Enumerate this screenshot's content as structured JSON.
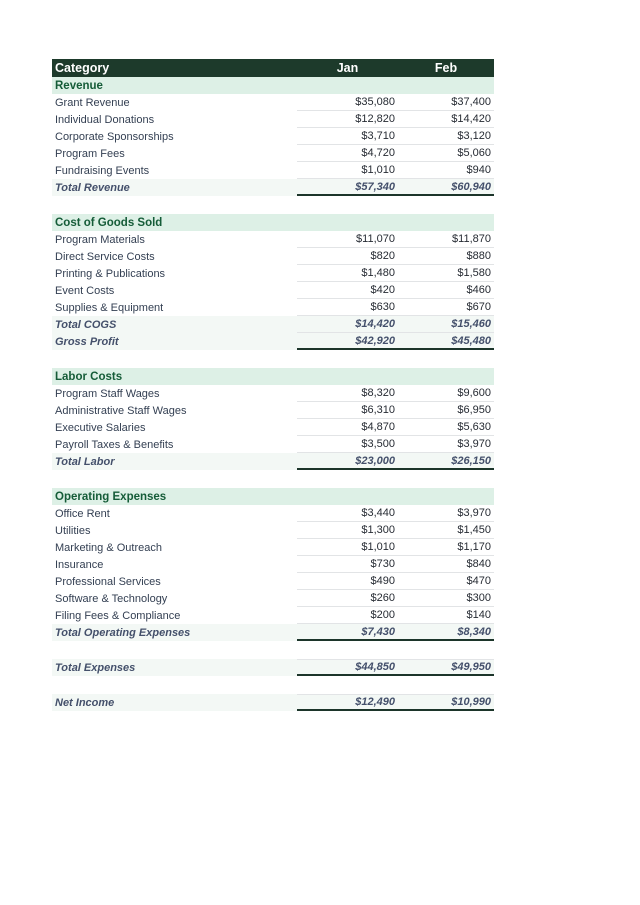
{
  "page": {
    "background": "#ffffff"
  },
  "table": {
    "colors": {
      "header_bg": "#1d3a2b",
      "header_text": "#ffffff",
      "section_bg": "#ddf0e6",
      "section_text": "#155c38",
      "label_text": "#333f52",
      "value_text": "#262b33",
      "total_text": "#44506b",
      "total_bg": "#f3f8f5",
      "row_line": "#e2e4e6",
      "total_border": "#1c352a"
    },
    "columns": [
      "Category",
      "Jan",
      "Feb"
    ],
    "sections": [
      {
        "title": "Revenue",
        "rows": [
          {
            "label": "Grant Revenue",
            "jan": "$35,080",
            "feb": "$37,400"
          },
          {
            "label": "Individual Donations",
            "jan": "$12,820",
            "feb": "$14,420"
          },
          {
            "label": "Corporate Sponsorships",
            "jan": "$3,710",
            "feb": "$3,120"
          },
          {
            "label": "Program Fees",
            "jan": "$4,720",
            "feb": "$5,060"
          },
          {
            "label": "Fundraising Events",
            "jan": "$1,010",
            "feb": "$940"
          }
        ],
        "totals": [
          {
            "label": "Total Revenue",
            "jan": "$57,340",
            "feb": "$60,940"
          }
        ]
      },
      {
        "title": "Cost of Goods Sold",
        "rows": [
          {
            "label": "Program Materials",
            "jan": "$11,070",
            "feb": "$11,870"
          },
          {
            "label": "Direct Service Costs",
            "jan": "$820",
            "feb": "$880"
          },
          {
            "label": "Printing & Publications",
            "jan": "$1,480",
            "feb": "$1,580"
          },
          {
            "label": "Event Costs",
            "jan": "$420",
            "feb": "$460"
          },
          {
            "label": "Supplies & Equipment",
            "jan": "$630",
            "feb": "$670"
          }
        ],
        "totals": [
          {
            "label": "Total COGS",
            "jan": "$14,420",
            "feb": "$15,460"
          },
          {
            "label": "Gross Profit",
            "jan": "$42,920",
            "feb": "$45,480"
          }
        ]
      },
      {
        "title": "Labor Costs",
        "rows": [
          {
            "label": "Program Staff Wages",
            "jan": "$8,320",
            "feb": "$9,600"
          },
          {
            "label": "Administrative Staff Wages",
            "jan": "$6,310",
            "feb": "$6,950"
          },
          {
            "label": "Executive Salaries",
            "jan": "$4,870",
            "feb": "$5,630"
          },
          {
            "label": "Payroll Taxes & Benefits",
            "jan": "$3,500",
            "feb": "$3,970"
          }
        ],
        "totals": [
          {
            "label": "Total Labor",
            "jan": "$23,000",
            "feb": "$26,150"
          }
        ]
      },
      {
        "title": "Operating Expenses",
        "rows": [
          {
            "label": "Office Rent",
            "jan": "$3,440",
            "feb": "$3,970"
          },
          {
            "label": "Utilities",
            "jan": "$1,300",
            "feb": "$1,450"
          },
          {
            "label": "Marketing & Outreach",
            "jan": "$1,010",
            "feb": "$1,170"
          },
          {
            "label": "Insurance",
            "jan": "$730",
            "feb": "$840"
          },
          {
            "label": "Professional Services",
            "jan": "$490",
            "feb": "$470"
          },
          {
            "label": "Software & Technology",
            "jan": "$260",
            "feb": "$300"
          },
          {
            "label": "Filing Fees & Compliance",
            "jan": "$200",
            "feb": "$140"
          }
        ],
        "totals": [
          {
            "label": "Total Operating Expenses",
            "jan": "$7,430",
            "feb": "$8,340"
          }
        ]
      }
    ],
    "grand_totals": [
      {
        "label": "Total Expenses",
        "jan": "$44,850",
        "feb": "$49,950"
      },
      {
        "label": "Net Income",
        "jan": "$12,490",
        "feb": "$10,990"
      }
    ]
  }
}
